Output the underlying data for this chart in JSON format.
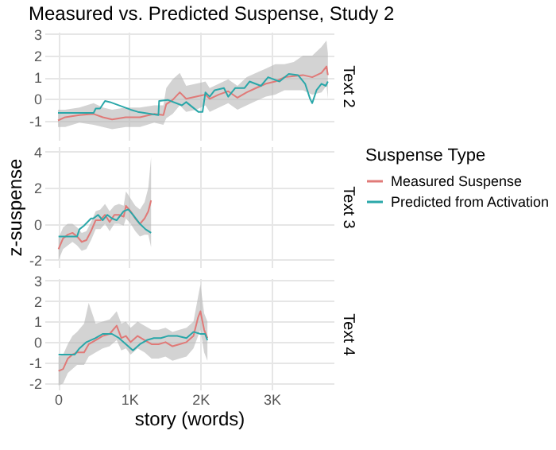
{
  "chart_data": [
    {
      "type": "line",
      "title": "Measured vs. Predicted Suspense, Study 2",
      "y2label": "Text 2",
      "xlim": [
        -190,
        3870
      ],
      "xticks": [
        {
          "value": 0,
          "label": null
        },
        {
          "value": 1000,
          "label": null
        },
        {
          "value": 2000,
          "label": null
        },
        {
          "value": 3000,
          "label": null
        }
      ],
      "ylim": [
        -1.9,
        3.1
      ],
      "yticks": [
        -1,
        0,
        1,
        2,
        3
      ],
      "grid": true,
      "tick_labels": "y",
      "series": [
        {
          "color": "#e07a78",
          "x": [
            0,
            100,
            300,
            500,
            630,
            760,
            950,
            1150,
            1350,
            1480,
            1520,
            1610,
            1710,
            1800,
            1940,
            2070,
            2130,
            2260,
            2390,
            2520,
            2650,
            2780,
            2920,
            3050,
            3180,
            3310,
            3440,
            3570,
            3700,
            3770,
            3790
          ],
          "values": [
            -1.0,
            -0.85,
            -0.75,
            -0.7,
            -0.85,
            -0.95,
            -0.85,
            -0.85,
            -0.7,
            -0.75,
            -0.25,
            -0.05,
            0.3,
            0.0,
            0.1,
            0.2,
            0.0,
            0.2,
            0.35,
            0.05,
            0.3,
            0.5,
            0.7,
            0.8,
            1.0,
            1.05,
            1.1,
            1.0,
            1.2,
            1.5,
            1.1
          ],
          "lower": [
            -1.3,
            -1.3,
            -1.1,
            -1.2,
            -1.3,
            -1.4,
            -1.3,
            -1.3,
            -1.1,
            -1.2,
            -0.9,
            -0.7,
            -0.3,
            -0.6,
            -0.5,
            -0.3,
            -0.6,
            -0.4,
            -0.2,
            -0.5,
            -0.3,
            -0.1,
            0.1,
            0.2,
            0.4,
            0.4,
            0.4,
            0.2,
            0.3,
            0.6,
            0.0
          ],
          "upper": [
            -0.5,
            -0.5,
            -0.4,
            -0.2,
            -0.4,
            -0.5,
            -0.4,
            -0.4,
            -0.3,
            -0.3,
            0.5,
            0.9,
            1.2,
            0.6,
            0.7,
            0.8,
            0.5,
            0.7,
            0.9,
            0.6,
            1.0,
            1.2,
            1.4,
            1.6,
            1.6,
            1.7,
            2.0,
            2.0,
            2.4,
            2.7,
            2.1
          ]
        },
        {
          "color": "#2aa7a9",
          "x": [
            0,
            500,
            530,
            590,
            660,
            730,
            1020,
            1120,
            1410,
            1420,
            1540,
            1740,
            1800,
            1970,
            2030,
            2070,
            2130,
            2200,
            2330,
            2390,
            2490,
            2620,
            2690,
            2850,
            2950,
            3110,
            3240,
            3370,
            3470,
            3540,
            3570,
            3630,
            3700,
            3760,
            3790
          ],
          "values": [
            -0.65,
            -0.65,
            -0.45,
            -0.45,
            -0.1,
            -0.15,
            -0.5,
            -0.6,
            -0.75,
            -0.1,
            -0.05,
            -0.3,
            -0.15,
            -0.6,
            -0.6,
            0.3,
            0.1,
            0.4,
            0.5,
            0.1,
            0.5,
            0.5,
            0.8,
            0.6,
            1.0,
            0.8,
            1.15,
            1.1,
            0.7,
            0.0,
            -0.2,
            0.4,
            0.7,
            0.6,
            0.8
          ]
        }
      ]
    },
    {
      "type": "line",
      "ylabel": "z-suspense",
      "y2label": "Text 3",
      "legend_title": "Suspense Type",
      "legend": "right",
      "xlim": [
        -190,
        3870
      ],
      "xticks": [
        {
          "value": 0,
          "label": null
        },
        {
          "value": 1000,
          "label": null
        },
        {
          "value": 2000,
          "label": null
        },
        {
          "value": 3000,
          "label": null
        }
      ],
      "ylim": [
        -2.4,
        4.3
      ],
      "yticks": [
        -2,
        0,
        2,
        4
      ],
      "grid": true,
      "tick_labels": "y",
      "series": [
        {
          "name": "Measured Suspense",
          "color": "#e07a78",
          "x": [
            7,
            72,
            137,
            203,
            268,
            333,
            399,
            464,
            529,
            595,
            660,
            725,
            791,
            856,
            922,
            954,
            1020,
            1085,
            1150,
            1216,
            1268,
            1307
          ],
          "values": [
            -1.4,
            -0.8,
            -0.6,
            -0.5,
            -0.7,
            -1.0,
            -0.9,
            -0.4,
            0.2,
            0.2,
            0.5,
            0.1,
            0.5,
            0.5,
            0.4,
            1.0,
            0.7,
            0.3,
            0.0,
            0.3,
            0.7,
            1.3
          ],
          "lower": [
            -2.0,
            -1.4,
            -1.2,
            -1.0,
            -1.2,
            -1.5,
            -1.4,
            -0.9,
            -0.3,
            -0.3,
            0.0,
            -0.4,
            0.0,
            0.0,
            -0.1,
            0.3,
            0.0,
            -0.4,
            -0.7,
            -0.6,
            -0.6,
            -1.3
          ],
          "upper": [
            -0.8,
            -0.2,
            0.0,
            0.0,
            -0.2,
            -0.5,
            -0.4,
            0.1,
            0.7,
            0.8,
            1.1,
            0.7,
            1.0,
            1.1,
            1.0,
            1.8,
            1.4,
            1.0,
            0.8,
            1.2,
            2.0,
            3.7
          ]
        },
        {
          "name": "Predicted from Activation",
          "color": "#2aa7a9",
          "x": [
            7,
            268,
            301,
            366,
            464,
            497,
            562,
            627,
            693,
            758,
            823,
            922,
            987,
            1052,
            1150,
            1229,
            1307
          ],
          "values": [
            -0.7,
            -0.7,
            -0.3,
            -0.1,
            0.3,
            0.3,
            0.5,
            0.2,
            0.5,
            0.3,
            0.2,
            0.7,
            0.8,
            0.5,
            0.0,
            -0.3,
            -0.5
          ]
        }
      ]
    },
    {
      "type": "line",
      "xlabel": "story (words)",
      "y2label": "Text 4",
      "xlim": [
        -190,
        3870
      ],
      "xticks": [
        0,
        {
          "value": 1000,
          "label": "1K"
        },
        {
          "value": 2000,
          "label": "2K"
        },
        {
          "value": 3000,
          "label": "3K"
        }
      ],
      "ylim": [
        -2.3,
        3.1
      ],
      "yticks": [
        -2,
        -1,
        0,
        1,
        2,
        3
      ],
      "grid": true,
      "series": [
        {
          "color": "#e07a78",
          "x": [
            7,
            72,
            137,
            203,
            268,
            366,
            431,
            529,
            627,
            725,
            824,
            889,
            954,
            1020,
            1118,
            1216,
            1314,
            1412,
            1510,
            1608,
            1706,
            1804,
            1902,
            1967,
            2000,
            2052,
            2098
          ],
          "values": [
            -1.4,
            -1.3,
            -0.8,
            -0.6,
            -0.5,
            -0.5,
            -0.1,
            0.1,
            0.3,
            0.4,
            0.8,
            0.2,
            0.3,
            0.0,
            0.3,
            0.1,
            -0.1,
            -0.1,
            0.0,
            -0.2,
            -0.1,
            0.0,
            0.3,
            1.2,
            1.5,
            0.6,
            0.2
          ],
          "lower": [
            -2.1,
            -2.0,
            -1.5,
            -1.3,
            -1.1,
            -1.1,
            -0.7,
            -0.5,
            -0.3,
            -0.2,
            0.1,
            -0.4,
            -0.3,
            -0.6,
            -0.3,
            -0.5,
            -0.8,
            -0.8,
            -0.7,
            -0.9,
            -0.8,
            -0.7,
            -0.3,
            0.3,
            0.6,
            -0.5,
            -0.9
          ],
          "upper": [
            -0.7,
            -0.6,
            -0.1,
            0.3,
            0.5,
            0.9,
            1.9,
            0.9,
            1.0,
            1.1,
            1.5,
            0.9,
            1.0,
            0.7,
            1.0,
            0.8,
            0.6,
            0.6,
            0.7,
            0.5,
            0.6,
            0.7,
            1.0,
            2.2,
            2.8,
            1.4,
            1.0
          ]
        },
        {
          "color": "#2aa7a9",
          "x": [
            7,
            235,
            301,
            399,
            529,
            627,
            758,
            856,
            954,
            1052,
            1150,
            1248,
            1346,
            1444,
            1542,
            1673,
            1804,
            1902,
            2000,
            2065,
            2098
          ],
          "values": [
            -0.6,
            -0.6,
            -0.3,
            0.0,
            0.2,
            0.4,
            0.4,
            0.2,
            -0.1,
            -0.4,
            -0.1,
            0.1,
            0.2,
            0.2,
            0.3,
            0.3,
            0.2,
            0.5,
            0.4,
            0.4,
            0.1
          ]
        }
      ]
    }
  ]
}
